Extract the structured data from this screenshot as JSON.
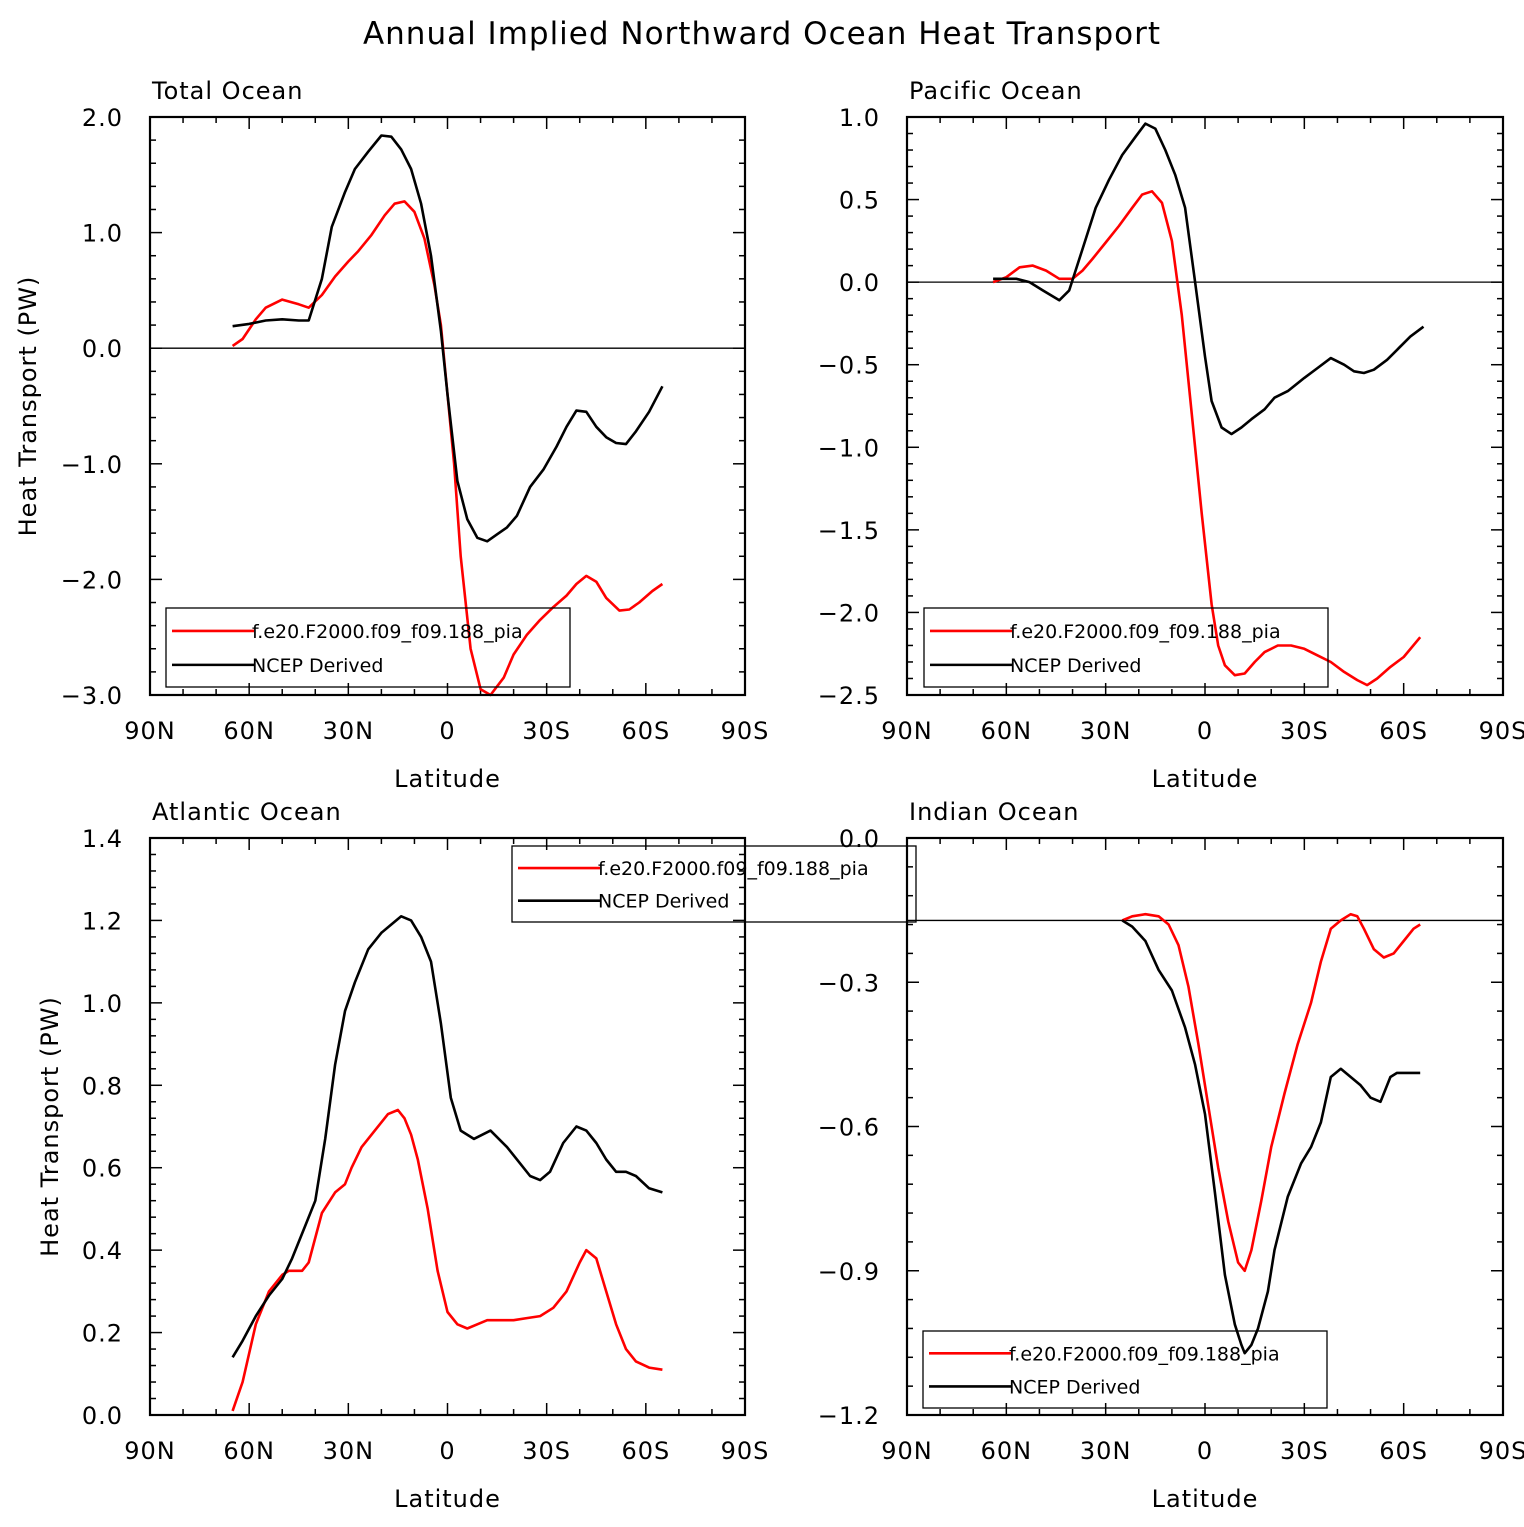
{
  "title": "Annual Implied Northward Ocean Heat Transport",
  "colors": {
    "model": "#ff0000",
    "obs": "#000000"
  },
  "chart_data": [
    {
      "type": "line",
      "title": "Total Ocean",
      "xlabel": "Latitude",
      "ylabel": "Heat Transport (PW)",
      "xlim": [
        -90,
        90
      ],
      "xticks": [
        "90N",
        "60N",
        "30N",
        "0",
        "30S",
        "60S",
        "90S"
      ],
      "ylim": [
        -3.0,
        2.0
      ],
      "yticks": [
        "2.0",
        "1.0",
        "0.0",
        "−1.0",
        "−2.0",
        "−3.0"
      ],
      "legend": "bottom-left",
      "series": [
        {
          "name": "f.e20.F2000.f09_f09.188_pia",
          "color": "#ff0000",
          "x": [
            -65,
            -62,
            -58,
            -55,
            -50,
            -45,
            -42,
            -38,
            -34,
            -30,
            -27,
            -23,
            -19,
            -16,
            -13,
            -10,
            -7,
            -4,
            -2,
            0,
            2,
            4,
            7,
            10,
            13,
            17,
            20,
            24,
            28,
            32,
            36,
            39,
            42,
            45,
            48,
            52,
            55,
            58,
            62,
            65
          ],
          "y": [
            0.02,
            0.08,
            0.25,
            0.35,
            0.42,
            0.38,
            0.35,
            0.46,
            0.62,
            0.75,
            0.84,
            0.98,
            1.15,
            1.25,
            1.27,
            1.18,
            0.95,
            0.55,
            0.2,
            -0.4,
            -1.0,
            -1.8,
            -2.6,
            -2.95,
            -3.0,
            -2.85,
            -2.65,
            -2.48,
            -2.35,
            -2.24,
            -2.14,
            -2.04,
            -1.97,
            -2.02,
            -2.16,
            -2.27,
            -2.26,
            -2.2,
            -2.1,
            -2.04
          ]
        },
        {
          "name": "NCEP Derived",
          "color": "#000000",
          "x": [
            -65,
            -60,
            -55,
            -50,
            -45,
            -42,
            -38,
            -35,
            -31,
            -28,
            -24,
            -20,
            -17,
            -14,
            -11,
            -8,
            -5,
            -2,
            0,
            3,
            6,
            9,
            12,
            15,
            18,
            21,
            25,
            29,
            33,
            36,
            39,
            42,
            45,
            48,
            51,
            54,
            57,
            61,
            65
          ],
          "y": [
            0.19,
            0.21,
            0.24,
            0.25,
            0.24,
            0.24,
            0.6,
            1.05,
            1.35,
            1.55,
            1.7,
            1.84,
            1.83,
            1.72,
            1.55,
            1.25,
            0.8,
            0.15,
            -0.4,
            -1.15,
            -1.48,
            -1.64,
            -1.67,
            -1.61,
            -1.55,
            -1.45,
            -1.2,
            -1.05,
            -0.85,
            -0.68,
            -0.54,
            -0.55,
            -0.68,
            -0.77,
            -0.82,
            -0.83,
            -0.72,
            -0.55,
            -0.33
          ]
        }
      ]
    },
    {
      "type": "line",
      "title": "Pacific Ocean",
      "xlabel": "Latitude",
      "ylabel": "",
      "xlim": [
        -90,
        90
      ],
      "xticks": [
        "90N",
        "60N",
        "30N",
        "0",
        "30S",
        "60S",
        "90S"
      ],
      "ylim": [
        -2.5,
        1.0
      ],
      "yticks": [
        "1.0",
        "0.5",
        "0.0",
        "−0.5",
        "−1.0",
        "−1.5",
        "−2.0",
        "−2.5"
      ],
      "legend": "bottom-left",
      "series": [
        {
          "name": "f.e20.F2000.f09_f09.188_pia",
          "color": "#ff0000",
          "x": [
            -64,
            -60,
            -56,
            -52,
            -48,
            -44,
            -40,
            -37,
            -34,
            -30,
            -26,
            -22,
            -19,
            -16,
            -13,
            -10,
            -7,
            -4,
            -1,
            2,
            4,
            6,
            9,
            12,
            15,
            18,
            22,
            26,
            30,
            34,
            38,
            42,
            46,
            49,
            52,
            56,
            60,
            65
          ],
          "y": [
            0.0,
            0.03,
            0.09,
            0.1,
            0.07,
            0.02,
            0.02,
            0.07,
            0.14,
            0.24,
            0.34,
            0.45,
            0.53,
            0.55,
            0.48,
            0.25,
            -0.2,
            -0.8,
            -1.4,
            -1.95,
            -2.2,
            -2.32,
            -2.38,
            -2.37,
            -2.3,
            -2.24,
            -2.2,
            -2.2,
            -2.22,
            -2.26,
            -2.3,
            -2.36,
            -2.41,
            -2.44,
            -2.4,
            -2.33,
            -2.27,
            -2.15
          ]
        },
        {
          "name": "NCEP Derived",
          "color": "#000000",
          "x": [
            -64,
            -57,
            -53,
            -49,
            -44,
            -41,
            -37,
            -33,
            -29,
            -25,
            -21,
            -18,
            -15,
            -12,
            -9,
            -6,
            -3,
            0,
            2,
            5,
            8,
            11,
            14,
            18,
            21,
            25,
            30,
            34,
            38,
            42,
            45,
            48,
            51,
            55,
            58,
            62,
            66
          ],
          "y": [
            0.02,
            0.02,
            0.0,
            -0.05,
            -0.11,
            -0.05,
            0.2,
            0.45,
            0.62,
            0.77,
            0.88,
            0.96,
            0.93,
            0.8,
            0.65,
            0.45,
            0.0,
            -0.45,
            -0.72,
            -0.88,
            -0.92,
            -0.88,
            -0.83,
            -0.77,
            -0.7,
            -0.66,
            -0.58,
            -0.52,
            -0.46,
            -0.5,
            -0.54,
            -0.55,
            -0.53,
            -0.47,
            -0.41,
            -0.33,
            -0.27
          ]
        }
      ]
    },
    {
      "type": "line",
      "title": "Atlantic Ocean",
      "xlabel": "Latitude",
      "ylabel": "Heat Transport (PW)",
      "xlim": [
        -90,
        90
      ],
      "xticks": [
        "90N",
        "60N",
        "30N",
        "0",
        "30S",
        "60S",
        "90S"
      ],
      "ylim": [
        0.0,
        1.4
      ],
      "yticks": [
        "1.4",
        "1.2",
        "1.0",
        "0.8",
        "0.6",
        "0.4",
        "0.2",
        "0.0"
      ],
      "legend": "top-right",
      "series": [
        {
          "name": "f.e20.F2000.f09_f09.188_pia",
          "color": "#ff0000",
          "x": [
            -65,
            -62,
            -58,
            -54,
            -50,
            -48,
            -44,
            -42,
            -38,
            -34,
            -31,
            -29,
            -26,
            -22,
            -18,
            -15,
            -13,
            -11,
            -9,
            -6,
            -3,
            0,
            3,
            6,
            9,
            12,
            16,
            20,
            24,
            28,
            32,
            36,
            40,
            42,
            45,
            48,
            51,
            54,
            57,
            61,
            65
          ],
          "y": [
            0.01,
            0.08,
            0.22,
            0.3,
            0.34,
            0.35,
            0.35,
            0.37,
            0.49,
            0.54,
            0.56,
            0.6,
            0.65,
            0.69,
            0.73,
            0.74,
            0.72,
            0.68,
            0.62,
            0.5,
            0.35,
            0.25,
            0.22,
            0.21,
            0.22,
            0.23,
            0.23,
            0.23,
            0.235,
            0.24,
            0.26,
            0.3,
            0.37,
            0.4,
            0.38,
            0.3,
            0.22,
            0.16,
            0.13,
            0.115,
            0.11
          ]
        },
        {
          "name": "NCEP Derived",
          "color": "#000000",
          "x": [
            -65,
            -62,
            -58,
            -54,
            -50,
            -47,
            -43,
            -40,
            -37,
            -34,
            -31,
            -28,
            -24,
            -20,
            -17,
            -14,
            -11,
            -8,
            -5,
            -2,
            1,
            4,
            8,
            13,
            18,
            22,
            25,
            28,
            31,
            35,
            39,
            42,
            45,
            48,
            51,
            54,
            57,
            61,
            65
          ],
          "y": [
            0.14,
            0.18,
            0.24,
            0.29,
            0.33,
            0.38,
            0.46,
            0.52,
            0.67,
            0.85,
            0.98,
            1.05,
            1.13,
            1.17,
            1.19,
            1.21,
            1.2,
            1.16,
            1.1,
            0.95,
            0.77,
            0.69,
            0.67,
            0.69,
            0.65,
            0.61,
            0.58,
            0.57,
            0.59,
            0.66,
            0.7,
            0.69,
            0.66,
            0.62,
            0.59,
            0.59,
            0.58,
            0.55,
            0.54
          ]
        }
      ]
    },
    {
      "type": "line",
      "title": "Indian Ocean",
      "xlabel": "Latitude",
      "ylabel": "",
      "xlim": [
        -90,
        90
      ],
      "xticks": [
        "90N",
        "60N",
        "30N",
        "0",
        "30S",
        "60S",
        "90S"
      ],
      "ylim": [
        -1.2,
        0.2
      ],
      "yticks": [
        "0.0",
        "−0.3",
        "−0.6",
        "−0.9",
        "−1.2"
      ],
      "legend": "bottom-left",
      "series": [
        {
          "name": "f.e20.F2000.f09_f09.188_pia",
          "color": "#ff0000",
          "x": [
            -25,
            -22,
            -18,
            -14,
            -11,
            -8,
            -5,
            -2,
            1,
            4,
            7,
            10,
            12,
            14,
            17,
            20,
            24,
            28,
            32,
            35,
            38,
            41,
            44,
            46,
            48,
            51,
            54,
            57,
            60,
            63,
            65
          ],
          "y": [
            0.0,
            0.01,
            0.015,
            0.01,
            -0.01,
            -0.06,
            -0.16,
            -0.3,
            -0.45,
            -0.6,
            -0.73,
            -0.83,
            -0.85,
            -0.8,
            -0.68,
            -0.55,
            -0.42,
            -0.3,
            -0.2,
            -0.1,
            -0.02,
            0.0,
            0.015,
            0.01,
            -0.02,
            -0.07,
            -0.09,
            -0.08,
            -0.05,
            -0.02,
            -0.01
          ]
        },
        {
          "name": "NCEP Derived",
          "color": "#000000",
          "x": [
            -25,
            -22,
            -18,
            -14,
            -10,
            -6,
            -3,
            0,
            3,
            6,
            9,
            11,
            12,
            14,
            16,
            19,
            21,
            25,
            29,
            32,
            35,
            38,
            41,
            44,
            47,
            50,
            53,
            56,
            58,
            61,
            65
          ],
          "y": [
            0.0,
            -0.015,
            -0.05,
            -0.12,
            -0.17,
            -0.26,
            -0.35,
            -0.47,
            -0.66,
            -0.86,
            -0.98,
            -1.03,
            -1.05,
            -1.03,
            -0.99,
            -0.9,
            -0.8,
            -0.67,
            -0.59,
            -0.55,
            -0.49,
            -0.38,
            -0.36,
            -0.38,
            -0.4,
            -0.43,
            -0.44,
            -0.38,
            -0.37,
            -0.37,
            -0.37
          ]
        }
      ]
    }
  ]
}
